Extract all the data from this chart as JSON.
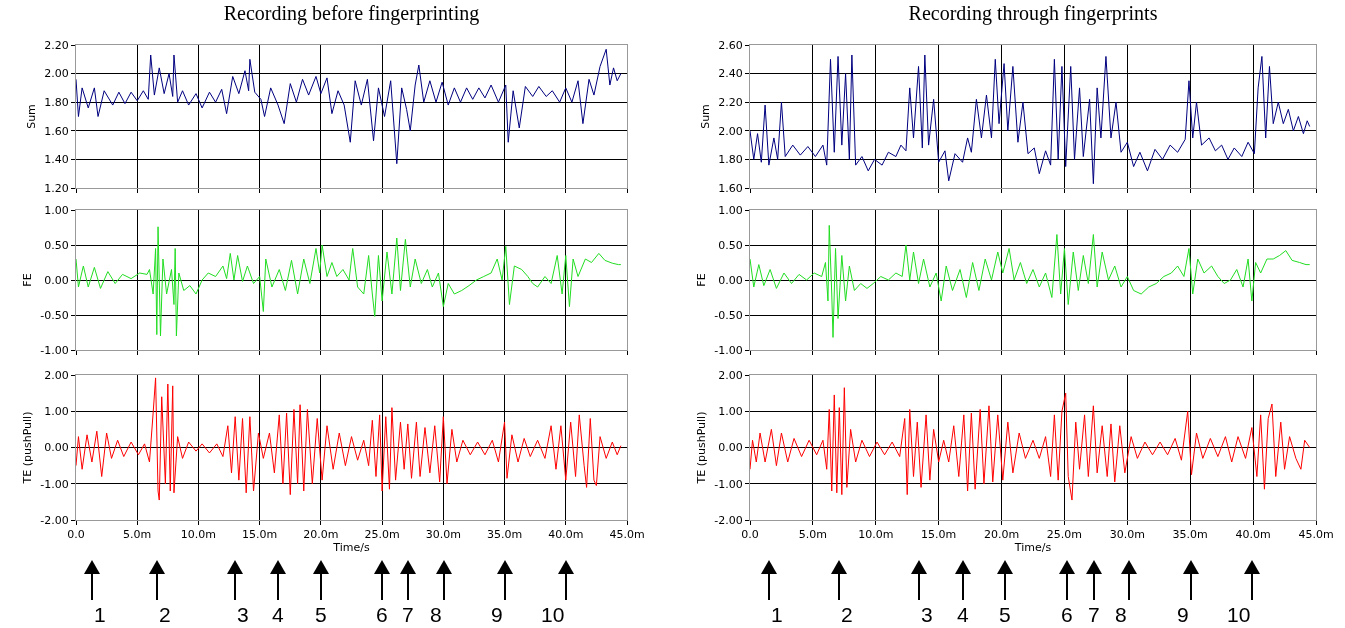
{
  "chart_data": [
    {
      "type": "line",
      "title": "Recording before fingerprinting",
      "ylabel": "Sum",
      "color": "#000080",
      "grid": true,
      "legend": false,
      "tick_labels": "y",
      "xlim": [
        0,
        45
      ],
      "xticks": [
        {
          "value": 0,
          "label": null
        },
        {
          "value": 5,
          "label": null
        },
        {
          "value": 10,
          "label": null
        },
        {
          "value": 15,
          "label": null
        },
        {
          "value": 20,
          "label": null
        },
        {
          "value": 25,
          "label": null
        },
        {
          "value": 30,
          "label": null
        },
        {
          "value": 35,
          "label": null
        },
        {
          "value": 40,
          "label": null
        },
        {
          "value": 45,
          "label": null
        }
      ],
      "ylim": [
        1.2,
        2.2
      ],
      "yticks": [
        {
          "value": 1.2,
          "label": "1.20"
        },
        {
          "value": 1.4,
          "label": "1.40"
        },
        {
          "value": 1.6,
          "label": "1.60"
        },
        {
          "value": 1.8,
          "label": "1.80"
        },
        {
          "value": 2.0,
          "label": "2.00"
        },
        {
          "value": 2.2,
          "label": "2.20"
        }
      ],
      "x": [
        0,
        0.2,
        0.5,
        1,
        1.5,
        1.8,
        2.3,
        3,
        3.5,
        4,
        4.5,
        5,
        5.5,
        5.9,
        6.1,
        6.4,
        6.8,
        7.2,
        7.6,
        7.9,
        8.0,
        8.3,
        8.7,
        9.2,
        9.8,
        10.3,
        10.9,
        11.4,
        11.9,
        12.3,
        12.8,
        13.3,
        13.8,
        14.1,
        14.2,
        14.6,
        15.1,
        15.4,
        15.9,
        16.5,
        17.0,
        17.5,
        18.0,
        18.5,
        19.0,
        19.6,
        20.0,
        20.5,
        20.9,
        21.4,
        21.9,
        22.4,
        22.8,
        23.3,
        23.8,
        24.3,
        24.7,
        25.2,
        25.7,
        26.2,
        26.6,
        27.0,
        27.3,
        27.7,
        28.0,
        28.4,
        28.9,
        29.4,
        29.9,
        30.4,
        30.9,
        31.4,
        31.9,
        32.4,
        32.9,
        33.4,
        33.9,
        34.5,
        35.1,
        35.3,
        35.7,
        36.2,
        36.7,
        37.3,
        37.8,
        38.4,
        38.9,
        39.5,
        40.0,
        40.5,
        41.0,
        41.4,
        41.9,
        42.3,
        42.8,
        43.3,
        43.6,
        43.9,
        44.2,
        44.5
      ],
      "values": [
        1.96,
        1.7,
        1.9,
        1.76,
        1.9,
        1.7,
        1.88,
        1.78,
        1.87,
        1.79,
        1.87,
        1.81,
        1.88,
        1.82,
        2.13,
        1.85,
        2.04,
        1.86,
        2.0,
        1.84,
        2.13,
        1.8,
        1.88,
        1.78,
        1.86,
        1.76,
        1.87,
        1.8,
        1.89,
        1.72,
        1.98,
        1.86,
        2.02,
        1.88,
        2.1,
        1.87,
        1.82,
        1.7,
        1.9,
        1.78,
        1.65,
        1.93,
        1.8,
        1.96,
        1.85,
        1.98,
        1.86,
        1.97,
        1.72,
        1.88,
        1.78,
        1.52,
        1.95,
        1.78,
        1.96,
        1.53,
        1.9,
        1.7,
        1.95,
        1.37,
        1.9,
        1.75,
        1.6,
        1.92,
        2.06,
        1.8,
        1.95,
        1.8,
        1.94,
        1.78,
        1.9,
        1.8,
        1.9,
        1.82,
        1.9,
        1.83,
        1.92,
        1.8,
        1.92,
        1.52,
        1.88,
        1.62,
        1.91,
        1.84,
        1.91,
        1.84,
        1.88,
        1.8,
        1.9,
        1.8,
        1.95,
        1.65,
        1.96,
        1.85,
        2.05,
        2.17,
        1.92,
        2.04,
        1.95,
        2.0
      ]
    },
    {
      "type": "line",
      "title": "Recording through fingerprints",
      "ylabel": "Sum",
      "color": "#000080",
      "grid": true,
      "legend": false,
      "tick_labels": "y",
      "xlim": [
        0,
        45
      ],
      "xticks": [
        {
          "value": 0,
          "label": null
        },
        {
          "value": 5,
          "label": null
        },
        {
          "value": 10,
          "label": null
        },
        {
          "value": 15,
          "label": null
        },
        {
          "value": 20,
          "label": null
        },
        {
          "value": 25,
          "label": null
        },
        {
          "value": 30,
          "label": null
        },
        {
          "value": 35,
          "label": null
        },
        {
          "value": 40,
          "label": null
        },
        {
          "value": 45,
          "label": null
        }
      ],
      "ylim": [
        1.6,
        2.6
      ],
      "yticks": [
        {
          "value": 1.6,
          "label": "1.60"
        },
        {
          "value": 1.8,
          "label": "1.80"
        },
        {
          "value": 2.0,
          "label": "2.00"
        },
        {
          "value": 2.2,
          "label": "2.20"
        },
        {
          "value": 2.4,
          "label": "2.40"
        },
        {
          "value": 2.6,
          "label": "2.60"
        }
      ],
      "x": [
        0,
        0.3,
        0.6,
        0.9,
        1.2,
        1.5,
        1.9,
        2.2,
        2.5,
        2.8,
        3.4,
        4.0,
        4.6,
        5.2,
        5.8,
        6.1,
        6.4,
        6.7,
        7.0,
        7.3,
        7.6,
        7.9,
        8.1,
        8.4,
        8.9,
        9.4,
        9.9,
        10.5,
        11.0,
        11.6,
        12.0,
        12.4,
        12.7,
        13.0,
        13.4,
        13.7,
        13.9,
        14.2,
        14.6,
        15.0,
        15.5,
        15.8,
        16.3,
        16.9,
        17.3,
        17.6,
        18.0,
        18.4,
        18.8,
        19.2,
        19.5,
        19.8,
        20.2,
        20.5,
        20.9,
        21.3,
        21.7,
        22.1,
        22.6,
        23.0,
        23.5,
        23.9,
        24.2,
        24.5,
        24.8,
        25.1,
        25.5,
        25.8,
        26.2,
        26.5,
        27.0,
        27.3,
        27.6,
        27.9,
        28.3,
        28.7,
        29.1,
        29.5,
        30.0,
        30.5,
        31.0,
        31.6,
        32.2,
        32.8,
        33.4,
        34.0,
        34.6,
        34.9,
        35.2,
        35.5,
        35.9,
        36.5,
        37.0,
        37.5,
        38.0,
        38.5,
        39.1,
        39.6,
        40.1,
        40.4,
        40.7,
        41.0,
        41.3,
        41.6,
        42.0,
        42.4,
        42.8,
        43.2,
        43.6,
        44.0,
        44.3,
        44.5
      ],
      "values": [
        2.0,
        1.8,
        1.98,
        1.78,
        2.18,
        1.76,
        1.95,
        1.8,
        2.2,
        1.82,
        1.9,
        1.83,
        1.89,
        1.82,
        1.9,
        1.76,
        2.5,
        1.85,
        2.52,
        1.9,
        2.4,
        1.8,
        2.53,
        1.76,
        1.82,
        1.72,
        1.8,
        1.76,
        1.85,
        1.82,
        1.9,
        1.86,
        2.3,
        1.95,
        2.45,
        1.88,
        2.53,
        1.9,
        2.22,
        1.78,
        1.86,
        1.65,
        1.84,
        1.78,
        1.95,
        1.85,
        2.22,
        1.95,
        2.25,
        1.95,
        2.5,
        2.05,
        2.47,
        2.0,
        2.45,
        1.92,
        2.2,
        1.84,
        1.88,
        1.7,
        1.86,
        1.76,
        2.5,
        1.8,
        2.45,
        1.75,
        2.45,
        1.8,
        2.3,
        1.82,
        2.22,
        1.63,
        2.3,
        1.95,
        2.52,
        1.95,
        2.2,
        1.85,
        1.92,
        1.75,
        1.85,
        1.72,
        1.87,
        1.8,
        1.9,
        1.85,
        1.94,
        2.35,
        1.95,
        2.2,
        1.9,
        1.95,
        1.86,
        1.9,
        1.8,
        1.88,
        1.82,
        1.92,
        1.84,
        2.3,
        2.52,
        1.95,
        2.45,
        2.05,
        2.2,
        2.05,
        2.15,
        2.0,
        2.1,
        1.98,
        2.07,
        2.03
      ]
    },
    {
      "type": "line",
      "ylabel": "FE",
      "color": "#22dd22",
      "grid": true,
      "legend": false,
      "tick_labels": "y",
      "xlim": [
        0,
        45
      ],
      "xticks": [
        {
          "value": 0,
          "label": null
        },
        {
          "value": 5,
          "label": null
        },
        {
          "value": 10,
          "label": null
        },
        {
          "value": 15,
          "label": null
        },
        {
          "value": 20,
          "label": null
        },
        {
          "value": 25,
          "label": null
        },
        {
          "value": 30,
          "label": null
        },
        {
          "value": 35,
          "label": null
        },
        {
          "value": 40,
          "label": null
        },
        {
          "value": 45,
          "label": null
        }
      ],
      "ylim": [
        -1,
        1
      ],
      "yticks": [
        {
          "value": -1,
          "label": "-1.00"
        },
        {
          "value": -0.5,
          "label": "-0.50"
        },
        {
          "value": 0,
          "label": "0.00"
        },
        {
          "value": 0.5,
          "label": "0.50"
        },
        {
          "value": 1,
          "label": "1.00"
        }
      ],
      "x": [
        0,
        0.2,
        0.6,
        1,
        1.5,
        2,
        2.6,
        3.2,
        3.8,
        4.5,
        5.2,
        5.8,
        6.0,
        6.3,
        6.5,
        6.6,
        6.7,
        6.9,
        7.1,
        7.4,
        7.8,
        8.0,
        8.1,
        8.2,
        8.4,
        8.8,
        9.3,
        9.8,
        10.3,
        10.8,
        11.4,
        12.0,
        12.3,
        12.6,
        12.9,
        13.2,
        13.6,
        14.0,
        14.5,
        15.0,
        15.3,
        15.5,
        16.0,
        16.6,
        17.1,
        17.6,
        18.1,
        18.6,
        19.1,
        19.6,
        19.9,
        20.1,
        20.5,
        20.9,
        21.3,
        21.8,
        22.3,
        22.6,
        23.0,
        23.5,
        23.9,
        24.2,
        24.4,
        24.7,
        25.0,
        25.4,
        25.8,
        26.2,
        26.5,
        26.9,
        27.3,
        27.7,
        28.2,
        28.7,
        29.1,
        29.6,
        30.0,
        30.4,
        30.9,
        31.5,
        32.1,
        32.7,
        33.3,
        33.9,
        34.4,
        34.8,
        35.1,
        35.4,
        35.8,
        36.4,
        36.9,
        37.3,
        37.7,
        38.3,
        38.8,
        39.3,
        39.7,
        40.0,
        40.3,
        40.6,
        41.0,
        41.6,
        42.1,
        42.7,
        43.2,
        43.8,
        44.3,
        44.5
      ],
      "values": [
        0.3,
        -0.1,
        0.2,
        -0.1,
        0.18,
        -0.12,
        0.12,
        -0.05,
        0.08,
        0.02,
        0.1,
        0.08,
        0.15,
        -0.2,
        0.45,
        -0.78,
        0.76,
        -0.8,
        0.3,
        -0.2,
        0.15,
        -0.35,
        0.45,
        -0.8,
        0.1,
        -0.15,
        -0.08,
        -0.2,
        0.0,
        0.1,
        0.05,
        0.2,
        0.02,
        0.38,
        0.0,
        0.35,
        -0.02,
        0.2,
        -0.05,
        0.05,
        -0.45,
        0.3,
        -0.1,
        0.15,
        -0.15,
        0.28,
        -0.2,
        0.3,
        -0.05,
        0.45,
        0.1,
        0.5,
        0.05,
        0.25,
        0.05,
        0.15,
        0.0,
        0.45,
        -0.1,
        -0.2,
        0.35,
        -0.2,
        -0.52,
        0.35,
        -0.3,
        0.4,
        -0.2,
        0.6,
        -0.15,
        0.58,
        -0.1,
        0.3,
        -0.05,
        0.15,
        -0.1,
        0.1,
        -0.38,
        -0.05,
        -0.2,
        -0.15,
        -0.08,
        0.0,
        0.05,
        0.1,
        0.3,
        0.0,
        0.48,
        -0.35,
        0.2,
        0.15,
        0.05,
        -0.05,
        -0.1,
        0.05,
        -0.05,
        0.35,
        -0.2,
        0.35,
        -0.38,
        0.3,
        0.05,
        0.3,
        0.25,
        0.38,
        0.28,
        0.24,
        0.22,
        0.22
      ]
    },
    {
      "type": "line",
      "ylabel": "FE",
      "color": "#22dd22",
      "grid": true,
      "legend": false,
      "tick_labels": "y",
      "xlim": [
        0,
        45
      ],
      "xticks": [
        {
          "value": 0,
          "label": null
        },
        {
          "value": 5,
          "label": null
        },
        {
          "value": 10,
          "label": null
        },
        {
          "value": 15,
          "label": null
        },
        {
          "value": 20,
          "label": null
        },
        {
          "value": 25,
          "label": null
        },
        {
          "value": 30,
          "label": null
        },
        {
          "value": 35,
          "label": null
        },
        {
          "value": 40,
          "label": null
        },
        {
          "value": 45,
          "label": null
        }
      ],
      "ylim": [
        -1,
        1
      ],
      "yticks": [
        {
          "value": -1,
          "label": "-1.00"
        },
        {
          "value": -0.5,
          "label": "-0.50"
        },
        {
          "value": 0,
          "label": "0.00"
        },
        {
          "value": 0.5,
          "label": "0.50"
        },
        {
          "value": 1,
          "label": "1.00"
        }
      ],
      "x": [
        0,
        0.3,
        0.7,
        1.1,
        1.6,
        2.1,
        2.7,
        3.3,
        3.9,
        4.5,
        5.1,
        5.7,
        6.0,
        6.2,
        6.3,
        6.5,
        6.6,
        6.8,
        7.0,
        7.3,
        7.6,
        7.9,
        8.3,
        8.8,
        9.3,
        9.8,
        10.4,
        11.0,
        11.6,
        12.1,
        12.4,
        12.7,
        13.0,
        13.4,
        13.8,
        14.3,
        14.8,
        15.2,
        15.6,
        16.1,
        16.7,
        17.2,
        17.7,
        18.2,
        18.7,
        19.2,
        19.7,
        20.1,
        20.6,
        21.0,
        21.5,
        22.0,
        22.5,
        23.0,
        23.5,
        24.0,
        24.4,
        24.7,
        25.0,
        25.3,
        25.7,
        26.1,
        26.5,
        26.9,
        27.3,
        27.6,
        28.0,
        28.5,
        29.0,
        29.5,
        30.0,
        30.5,
        31.1,
        31.7,
        32.3,
        32.9,
        33.5,
        34.0,
        34.5,
        34.9,
        35.2,
        35.6,
        36.1,
        36.7,
        37.2,
        37.7,
        38.2,
        38.7,
        39.2,
        39.6,
        39.9,
        40.2,
        40.6,
        41.1,
        41.6,
        42.1,
        42.6,
        43.1,
        43.7,
        44.2,
        44.5
      ],
      "values": [
        0.3,
        -0.1,
        0.22,
        -0.08,
        0.15,
        -0.12,
        0.1,
        -0.05,
        0.08,
        0.0,
        0.1,
        0.05,
        0.25,
        -0.3,
        0.78,
        -0.2,
        -0.82,
        0.45,
        -0.55,
        0.35,
        -0.3,
        0.2,
        -0.15,
        -0.05,
        -0.12,
        -0.05,
        0.05,
        0.0,
        0.1,
        0.05,
        0.5,
        0.0,
        0.4,
        -0.05,
        0.3,
        -0.1,
        0.1,
        -0.3,
        0.2,
        -0.15,
        0.15,
        -0.25,
        0.25,
        -0.15,
        0.3,
        0.0,
        0.4,
        0.1,
        0.45,
        0.0,
        0.25,
        -0.05,
        0.15,
        -0.1,
        0.1,
        -0.25,
        0.65,
        -0.2,
        0.45,
        -0.35,
        0.4,
        -0.15,
        0.35,
        -0.05,
        0.65,
        -0.1,
        0.4,
        0.0,
        0.2,
        -0.1,
        0.05,
        -0.15,
        -0.2,
        -0.1,
        -0.05,
        0.05,
        0.1,
        0.2,
        0.05,
        0.45,
        -0.2,
        0.3,
        0.1,
        0.2,
        0.05,
        -0.05,
        0.0,
        0.15,
        -0.1,
        0.3,
        -0.3,
        0.25,
        0.1,
        0.3,
        0.3,
        0.35,
        0.42,
        0.28,
        0.25,
        0.22,
        0.22
      ]
    },
    {
      "type": "line",
      "ylabel": "TE (pushPull)",
      "xlabel": "Time/s",
      "color": "#ff0000",
      "grid": true,
      "legend": false,
      "xlim": [
        0,
        45
      ],
      "xticks": [
        {
          "value": 0,
          "label": "0.0"
        },
        {
          "value": 5,
          "label": "5.0m"
        },
        {
          "value": 10,
          "label": "10.0m"
        },
        {
          "value": 15,
          "label": "15.0m"
        },
        {
          "value": 20,
          "label": "20.0m"
        },
        {
          "value": 25,
          "label": "25.0m"
        },
        {
          "value": 30,
          "label": "30.0m"
        },
        {
          "value": 35,
          "label": "35.0m"
        },
        {
          "value": 40,
          "label": "40.0m"
        },
        {
          "value": 45,
          "label": "45.0m"
        }
      ],
      "ylim": [
        -2,
        2
      ],
      "yticks": [
        {
          "value": -2,
          "label": "-2.00"
        },
        {
          "value": -1,
          "label": "-1.00"
        },
        {
          "value": 0,
          "label": "0.00"
        },
        {
          "value": 1,
          "label": "1.00"
        },
        {
          "value": 2,
          "label": "2.00"
        }
      ],
      "annotations": [
        "1",
        "2",
        "3",
        "4",
        "5",
        "6",
        "7",
        "8",
        "9",
        "10"
      ],
      "x": [
        0,
        0.2,
        0.5,
        0.9,
        1.3,
        1.7,
        2.1,
        2.5,
        2.9,
        3.4,
        3.9,
        4.5,
        5.1,
        5.6,
        6.0,
        6.3,
        6.5,
        6.7,
        6.8,
        7.0,
        7.3,
        7.5,
        7.7,
        7.9,
        8.0,
        8.3,
        8.7,
        9.2,
        9.8,
        10.3,
        10.9,
        11.5,
        12.0,
        12.4,
        12.7,
        13.0,
        13.3,
        13.6,
        13.9,
        14.2,
        14.5,
        14.9,
        15.3,
        15.8,
        16.2,
        16.6,
        16.9,
        17.2,
        17.5,
        17.8,
        18.1,
        18.3,
        18.6,
        18.9,
        19.3,
        19.7,
        20.1,
        20.5,
        21.0,
        21.5,
        22.0,
        22.5,
        23.0,
        23.5,
        23.9,
        24.2,
        24.5,
        24.8,
        25.0,
        25.3,
        25.6,
        25.8,
        26.1,
        26.5,
        26.8,
        27.1,
        27.4,
        27.8,
        28.1,
        28.5,
        28.9,
        29.3,
        29.7,
        30.0,
        30.3,
        30.7,
        31.1,
        31.6,
        32.2,
        32.8,
        33.4,
        34.0,
        34.5,
        35.0,
        35.2,
        35.6,
        36.1,
        36.6,
        37.1,
        37.7,
        38.3,
        38.8,
        39.2,
        39.6,
        40.0,
        40.4,
        40.8,
        41.1,
        41.5,
        41.7,
        42.0,
        42.3,
        42.5,
        42.8,
        43.3,
        43.8,
        44.2,
        44.5
      ],
      "values": [
        -0.5,
        0.3,
        -0.6,
        0.35,
        -0.4,
        0.45,
        -0.8,
        0.4,
        -0.3,
        0.2,
        -0.25,
        0.15,
        -0.2,
        0.1,
        -0.4,
        0.95,
        1.92,
        -1.2,
        -1.45,
        1.4,
        -1.0,
        1.75,
        -1.2,
        1.7,
        -1.25,
        0.3,
        -0.3,
        0.15,
        -0.1,
        0.1,
        -0.15,
        0.1,
        -0.25,
        0.6,
        -0.7,
        0.85,
        -0.9,
        0.8,
        -1.25,
        0.85,
        -1.2,
        0.4,
        -0.3,
        0.4,
        -0.7,
        0.9,
        -1.0,
        0.95,
        -1.3,
        1.05,
        -1.0,
        1.18,
        -1.2,
        1.05,
        -1.0,
        0.8,
        -0.9,
        0.6,
        -0.6,
        0.4,
        -0.5,
        0.3,
        -0.35,
        0.2,
        -0.5,
        0.75,
        -0.8,
        0.9,
        -1.2,
        0.85,
        -1.15,
        1.1,
        -0.9,
        0.7,
        -0.6,
        0.65,
        -0.85,
        0.7,
        -0.8,
        0.55,
        -0.7,
        0.6,
        -0.95,
        0.85,
        -1.0,
        0.5,
        -0.4,
        0.2,
        -0.2,
        0.15,
        -0.2,
        0.2,
        -0.4,
        0.7,
        -0.85,
        0.35,
        -0.4,
        0.25,
        -0.25,
        0.2,
        -0.3,
        0.6,
        -0.6,
        0.6,
        -0.9,
        0.7,
        -0.8,
        0.9,
        -0.5,
        -1.1,
        0.8,
        -0.9,
        -1.05,
        0.3,
        -0.3,
        0.15,
        -0.2,
        0.05
      ]
    },
    {
      "type": "line",
      "ylabel": "TE (pushPull)",
      "xlabel": "Time/s",
      "color": "#ff0000",
      "grid": true,
      "legend": false,
      "xlim": [
        0,
        45
      ],
      "xticks": [
        {
          "value": 0,
          "label": "0.0"
        },
        {
          "value": 5,
          "label": "5.0m"
        },
        {
          "value": 10,
          "label": "10.0m"
        },
        {
          "value": 15,
          "label": "15.0m"
        },
        {
          "value": 20,
          "label": "20.0m"
        },
        {
          "value": 25,
          "label": "25.0m"
        },
        {
          "value": 30,
          "label": "30.0m"
        },
        {
          "value": 35,
          "label": "35.0m"
        },
        {
          "value": 40,
          "label": "40.0m"
        },
        {
          "value": 45,
          "label": "45.0m"
        }
      ],
      "ylim": [
        -2,
        2
      ],
      "yticks": [
        {
          "value": -2,
          "label": "-2.00"
        },
        {
          "value": -1,
          "label": "-1.00"
        },
        {
          "value": 0,
          "label": "0.00"
        },
        {
          "value": 1,
          "label": "1.00"
        },
        {
          "value": 2,
          "label": "2.00"
        }
      ],
      "annotations": [
        "1",
        "2",
        "3",
        "4",
        "5",
        "6",
        "7",
        "8",
        "9",
        "10"
      ],
      "x": [
        0,
        0.2,
        0.5,
        0.8,
        1.2,
        1.7,
        2.1,
        2.5,
        3.0,
        3.5,
        4.1,
        4.7,
        5.3,
        5.8,
        6.1,
        6.3,
        6.5,
        6.7,
        6.9,
        7.1,
        7.3,
        7.5,
        7.7,
        8.0,
        8.4,
        8.9,
        9.5,
        10.1,
        10.7,
        11.3,
        11.9,
        12.3,
        12.5,
        12.7,
        13.0,
        13.3,
        13.6,
        14.0,
        14.3,
        14.6,
        15.0,
        15.4,
        15.8,
        16.2,
        16.6,
        17.0,
        17.3,
        17.6,
        17.9,
        18.3,
        18.6,
        19.0,
        19.3,
        19.7,
        20.1,
        20.5,
        20.9,
        21.4,
        21.9,
        22.5,
        23.0,
        23.5,
        23.9,
        24.2,
        24.5,
        24.8,
        25.1,
        25.3,
        25.6,
        25.9,
        26.2,
        26.6,
        26.9,
        27.3,
        27.6,
        28.0,
        28.4,
        28.7,
        29.0,
        29.4,
        29.8,
        30.3,
        30.8,
        31.4,
        32.0,
        32.6,
        33.2,
        33.8,
        34.3,
        34.8,
        35.1,
        35.5,
        36.0,
        36.6,
        37.2,
        37.8,
        38.3,
        38.8,
        39.4,
        39.9,
        40.3,
        40.6,
        40.9,
        41.2,
        41.5,
        41.8,
        42.2,
        42.5,
        42.9,
        43.4,
        43.8,
        44.1,
        44.5
      ],
      "values": [
        -0.6,
        0.2,
        -0.4,
        0.4,
        -0.4,
        0.5,
        -0.5,
        0.4,
        -0.4,
        0.25,
        -0.25,
        0.2,
        -0.2,
        0.2,
        -0.6,
        1.05,
        -1.2,
        1.45,
        -1.25,
        1.1,
        -1.3,
        1.65,
        -1.1,
        0.5,
        -0.4,
        0.2,
        -0.25,
        0.15,
        -0.2,
        0.15,
        -0.25,
        0.8,
        -1.3,
        1.05,
        -0.8,
        0.7,
        -1.1,
        0.9,
        -0.9,
        0.5,
        -0.4,
        0.2,
        -0.4,
        0.6,
        -0.8,
        0.9,
        -1.2,
        0.95,
        -1.15,
        1.05,
        -1.0,
        1.15,
        -0.95,
        0.9,
        -0.9,
        0.7,
        -0.7,
        0.4,
        -0.3,
        0.2,
        -0.3,
        0.3,
        -0.8,
        0.9,
        -0.9,
        1.0,
        1.5,
        -0.8,
        -1.45,
        0.7,
        -0.6,
        0.9,
        -0.8,
        1.15,
        -0.7,
        0.6,
        -0.8,
        0.65,
        -0.95,
        0.6,
        -0.7,
        0.3,
        -0.3,
        0.15,
        -0.2,
        0.15,
        -0.2,
        0.25,
        -0.35,
        1.0,
        -0.75,
        0.4,
        -0.3,
        0.25,
        -0.25,
        0.3,
        -0.4,
        0.3,
        -0.3,
        0.55,
        -0.8,
        0.9,
        -1.15,
        0.8,
        1.2,
        -0.8,
        0.7,
        -0.6,
        0.3,
        -0.3,
        -0.6,
        0.2,
        0.0
      ]
    }
  ]
}
